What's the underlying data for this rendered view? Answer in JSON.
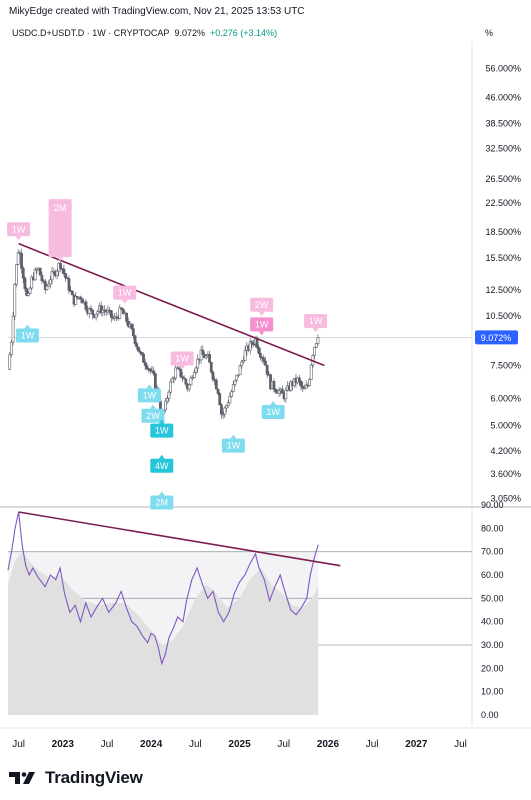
{
  "header": {
    "attribution": "MikyEdge created with TradingView.com, Nov 21, 2025 13:53 UTC"
  },
  "symbol": {
    "name": "USDC.D+USDT.D · 1W · CRYPTOCAP",
    "value": "9.072%",
    "change": "+0.276 (+3.14%)"
  },
  "scale_button": "%",
  "footer": {
    "brand": "TradingView",
    "logo_icon": "tradingview-logo-icon"
  },
  "colors": {
    "candle": "#5d606b",
    "trendline": "#7b1d4f",
    "rsi_line": "#7e57c2",
    "rsi_band": "#e0e0e0",
    "pink_label": "#f8bbe0",
    "cyan_label": "#7fdcef",
    "price_badge": "#2962ff"
  },
  "chart_data": [
    {
      "type": "candlestick",
      "scale": "log",
      "y_tick_labels": [
        "56.000%",
        "46.000%",
        "38.500%",
        "32.500%",
        "26.500%",
        "22.500%",
        "18.500%",
        "15.500%",
        "12.500%",
        "10.500%",
        "7.500%",
        "6.000%",
        "5.000%",
        "4.200%",
        "3.600%",
        "3.050%"
      ],
      "y_ticks": [
        56,
        46,
        38.5,
        32.5,
        26.5,
        22.5,
        18.5,
        15.5,
        12.5,
        10.5,
        7.5,
        6,
        5,
        4.2,
        3.6,
        3.05
      ],
      "y_range": [
        2.9,
        66
      ],
      "last_price_label": "9.072%",
      "last_price": 9.072,
      "x_range": [
        2022.38,
        2027.63
      ],
      "x_ticks": [
        {
          "label": "Jul",
          "x": 2022.5
        },
        {
          "label": "2023",
          "x": 2023.0
        },
        {
          "label": "Jul",
          "x": 2023.5
        },
        {
          "label": "2024",
          "x": 2024.0
        },
        {
          "label": "Jul",
          "x": 2024.5
        },
        {
          "label": "2025",
          "x": 2025.0
        },
        {
          "label": "Jul",
          "x": 2025.5
        },
        {
          "label": "2026",
          "x": 2026.0
        },
        {
          "label": "Jul",
          "x": 2026.5
        },
        {
          "label": "2027",
          "x": 2027.0
        },
        {
          "label": "Jul",
          "x": 2027.5
        }
      ],
      "close_path": [
        [
          2022.38,
          7.3
        ],
        [
          2022.42,
          9.0
        ],
        [
          2022.46,
          13.5
        ],
        [
          2022.5,
          16.8
        ],
        [
          2022.55,
          14.0
        ],
        [
          2022.6,
          11.5
        ],
        [
          2022.65,
          13.5
        ],
        [
          2022.72,
          14.5
        ],
        [
          2022.8,
          12.5
        ],
        [
          2022.86,
          13.6
        ],
        [
          2022.92,
          14.2
        ],
        [
          2022.97,
          15.0
        ],
        [
          2023.05,
          13.2
        ],
        [
          2023.12,
          11.6
        ],
        [
          2023.2,
          12.0
        ],
        [
          2023.28,
          11.0
        ],
        [
          2023.35,
          10.6
        ],
        [
          2023.42,
          11.0
        ],
        [
          2023.5,
          10.8
        ],
        [
          2023.58,
          10.2
        ],
        [
          2023.66,
          10.9
        ],
        [
          2023.72,
          10.2
        ],
        [
          2023.8,
          9.2
        ],
        [
          2023.88,
          8.0
        ],
        [
          2023.96,
          7.5
        ],
        [
          2024.03,
          6.9
        ],
        [
          2024.08,
          6.1
        ],
        [
          2024.12,
          5.3
        ],
        [
          2024.16,
          5.7
        ],
        [
          2024.2,
          6.4
        ],
        [
          2024.28,
          7.3
        ],
        [
          2024.35,
          7.0
        ],
        [
          2024.42,
          6.4
        ],
        [
          2024.48,
          7.3
        ],
        [
          2024.56,
          8.1
        ],
        [
          2024.64,
          7.9
        ],
        [
          2024.7,
          7.0
        ],
        [
          2024.76,
          6.3
        ],
        [
          2024.8,
          5.3
        ],
        [
          2024.86,
          5.8
        ],
        [
          2024.93,
          6.5
        ],
        [
          2025.0,
          7.3
        ],
        [
          2025.05,
          8.1
        ],
        [
          2025.12,
          8.6
        ],
        [
          2025.18,
          9.0
        ],
        [
          2025.22,
          8.3
        ],
        [
          2025.28,
          7.8
        ],
        [
          2025.35,
          6.6
        ],
        [
          2025.42,
          6.4
        ],
        [
          2025.5,
          6.1
        ],
        [
          2025.58,
          6.6
        ],
        [
          2025.66,
          6.8
        ],
        [
          2025.72,
          6.3
        ],
        [
          2025.78,
          6.6
        ],
        [
          2025.82,
          8.0
        ],
        [
          2025.86,
          8.8
        ],
        [
          2025.89,
          9.072
        ]
      ],
      "trendline": [
        [
          2022.5,
          17.1
        ],
        [
          2025.96,
          7.5
        ]
      ],
      "labels": [
        {
          "text": "1W",
          "kind": "pink",
          "x": 2022.5,
          "y": 17.5,
          "above": true
        },
        {
          "text": "2M",
          "kind": "pink",
          "x": 2022.97,
          "y": 15.2,
          "above": true,
          "tall": 3
        },
        {
          "text": "1W",
          "kind": "pink",
          "x": 2023.7,
          "y": 11.4,
          "above": true
        },
        {
          "text": "1W",
          "kind": "pink",
          "x": 2024.35,
          "y": 7.3,
          "above": true
        },
        {
          "text": "2W",
          "kind": "pink",
          "x": 2025.25,
          "y": 10.5,
          "above": true
        },
        {
          "text": "1W",
          "kind": "pink",
          "x": 2025.25,
          "y": 9.2,
          "above": true,
          "strong": true
        },
        {
          "text": "1W",
          "kind": "pink",
          "x": 2025.86,
          "y": 9.4,
          "above": true
        },
        {
          "text": "1W",
          "kind": "cyan",
          "x": 2022.6,
          "y": 9.9,
          "above": false
        },
        {
          "text": "1W",
          "kind": "cyan",
          "x": 2023.98,
          "y": 6.6,
          "above": false
        },
        {
          "text": "2W",
          "kind": "cyan",
          "x": 2024.02,
          "y": 5.75,
          "above": false
        },
        {
          "text": "1W",
          "kind": "cyan",
          "x": 2024.12,
          "y": 5.2,
          "above": false,
          "strong": true
        },
        {
          "text": "4W",
          "kind": "cyan",
          "x": 2024.12,
          "y": 4.1,
          "above": false,
          "strong": true
        },
        {
          "text": "2M",
          "kind": "cyan",
          "x": 2024.12,
          "y": 3.2,
          "above": false
        },
        {
          "text": "1W",
          "kind": "cyan",
          "x": 2024.93,
          "y": 4.7,
          "above": false
        },
        {
          "text": "1W",
          "kind": "cyan",
          "x": 2025.38,
          "y": 5.9,
          "above": false
        }
      ]
    },
    {
      "type": "line",
      "name": "RSI",
      "y_range": [
        0,
        90
      ],
      "y_tick_labels": [
        "90.00",
        "80.00",
        "70.00",
        "60.00",
        "50.00",
        "40.00",
        "30.00",
        "20.00",
        "10.00",
        "0.00"
      ],
      "y_ticks": [
        90,
        80,
        70,
        60,
        50,
        40,
        30,
        20,
        10,
        0
      ],
      "levels": [
        70,
        50,
        30
      ],
      "rsi": [
        [
          2022.38,
          62
        ],
        [
          2022.42,
          70
        ],
        [
          2022.46,
          80
        ],
        [
          2022.5,
          87
        ],
        [
          2022.54,
          73
        ],
        [
          2022.58,
          64
        ],
        [
          2022.62,
          60
        ],
        [
          2022.66,
          63
        ],
        [
          2022.72,
          59
        ],
        [
          2022.8,
          55
        ],
        [
          2022.86,
          60
        ],
        [
          2022.92,
          58
        ],
        [
          2022.97,
          63
        ],
        [
          2023.02,
          52
        ],
        [
          2023.08,
          44
        ],
        [
          2023.14,
          47
        ],
        [
          2023.2,
          40
        ],
        [
          2023.26,
          48
        ],
        [
          2023.32,
          42
        ],
        [
          2023.38,
          46
        ],
        [
          2023.45,
          50
        ],
        [
          2023.52,
          44
        ],
        [
          2023.6,
          48
        ],
        [
          2023.66,
          53
        ],
        [
          2023.72,
          46
        ],
        [
          2023.78,
          40
        ],
        [
          2023.84,
          38
        ],
        [
          2023.9,
          34
        ],
        [
          2023.96,
          31
        ],
        [
          2024.0,
          35
        ],
        [
          2024.04,
          34
        ],
        [
          2024.08,
          29
        ],
        [
          2024.12,
          22
        ],
        [
          2024.16,
          26
        ],
        [
          2024.2,
          33
        ],
        [
          2024.26,
          38
        ],
        [
          2024.3,
          42
        ],
        [
          2024.36,
          40
        ],
        [
          2024.4,
          49
        ],
        [
          2024.46,
          58
        ],
        [
          2024.52,
          63
        ],
        [
          2024.58,
          56
        ],
        [
          2024.64,
          50
        ],
        [
          2024.7,
          53
        ],
        [
          2024.76,
          44
        ],
        [
          2024.82,
          40
        ],
        [
          2024.88,
          44
        ],
        [
          2024.94,
          52
        ],
        [
          2025.0,
          57
        ],
        [
          2025.06,
          60
        ],
        [
          2025.12,
          65
        ],
        [
          2025.18,
          69
        ],
        [
          2025.22,
          63
        ],
        [
          2025.28,
          58
        ],
        [
          2025.34,
          49
        ],
        [
          2025.4,
          55
        ],
        [
          2025.46,
          60
        ],
        [
          2025.52,
          52
        ],
        [
          2025.58,
          45
        ],
        [
          2025.64,
          43
        ],
        [
          2025.7,
          46
        ],
        [
          2025.76,
          50
        ],
        [
          2025.8,
          60
        ],
        [
          2025.85,
          68
        ],
        [
          2025.89,
          73
        ]
      ],
      "rsi_ma": [
        [
          2022.38,
          56
        ],
        [
          2022.46,
          66
        ],
        [
          2022.54,
          70
        ],
        [
          2022.62,
          66
        ],
        [
          2022.72,
          62
        ],
        [
          2022.84,
          59
        ],
        [
          2022.97,
          60
        ],
        [
          2023.1,
          54
        ],
        [
          2023.25,
          49
        ],
        [
          2023.4,
          47
        ],
        [
          2023.55,
          48
        ],
        [
          2023.7,
          48
        ],
        [
          2023.85,
          43
        ],
        [
          2024.0,
          36
        ],
        [
          2024.12,
          30
        ],
        [
          2024.24,
          32
        ],
        [
          2024.36,
          38
        ],
        [
          2024.5,
          50
        ],
        [
          2024.62,
          56
        ],
        [
          2024.74,
          52
        ],
        [
          2024.86,
          46
        ],
        [
          2025.0,
          50
        ],
        [
          2025.12,
          58
        ],
        [
          2025.24,
          63
        ],
        [
          2025.36,
          56
        ],
        [
          2025.48,
          52
        ],
        [
          2025.6,
          47
        ],
        [
          2025.72,
          46
        ],
        [
          2025.82,
          50
        ],
        [
          2025.89,
          55
        ]
      ],
      "trendline": [
        [
          2022.5,
          87
        ],
        [
          2026.14,
          64
        ]
      ]
    }
  ]
}
